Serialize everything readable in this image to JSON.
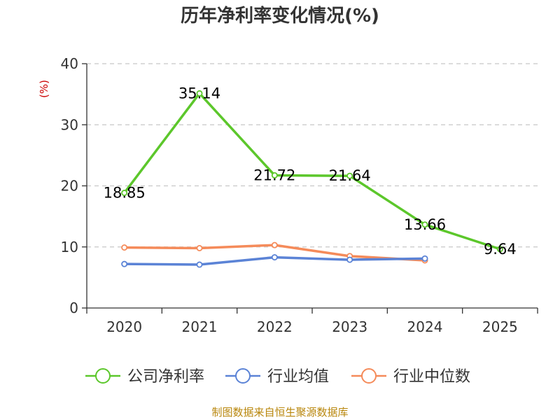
{
  "chart_data": {
    "type": "line",
    "title": "历年净利率变化情况(%)",
    "ylabel": "(%)",
    "xlabel": "",
    "categories": [
      "2020",
      "2021",
      "2022",
      "2023",
      "2024",
      "2025"
    ],
    "ylim": [
      0,
      40
    ],
    "yticks": [
      0,
      10,
      20,
      30,
      40
    ],
    "grid": true,
    "legend_position": "bottom",
    "series": [
      {
        "name": "公司净利率",
        "color": "#5cc72b",
        "values": [
          18.85,
          35.14,
          21.72,
          21.64,
          13.66,
          9.64
        ],
        "labels": [
          "18.85",
          "35.14",
          "21.72",
          "21.64",
          "13.66",
          "9.64"
        ]
      },
      {
        "name": "行业均值",
        "color": "#5b83d6",
        "values": [
          7.2,
          7.1,
          8.3,
          7.9,
          8.1,
          null
        ]
      },
      {
        "name": "行业中位数",
        "color": "#f58b5a",
        "values": [
          9.9,
          9.8,
          10.3,
          8.5,
          7.8,
          null
        ]
      }
    ]
  },
  "source": "制图数据来自恒生聚源数据库"
}
